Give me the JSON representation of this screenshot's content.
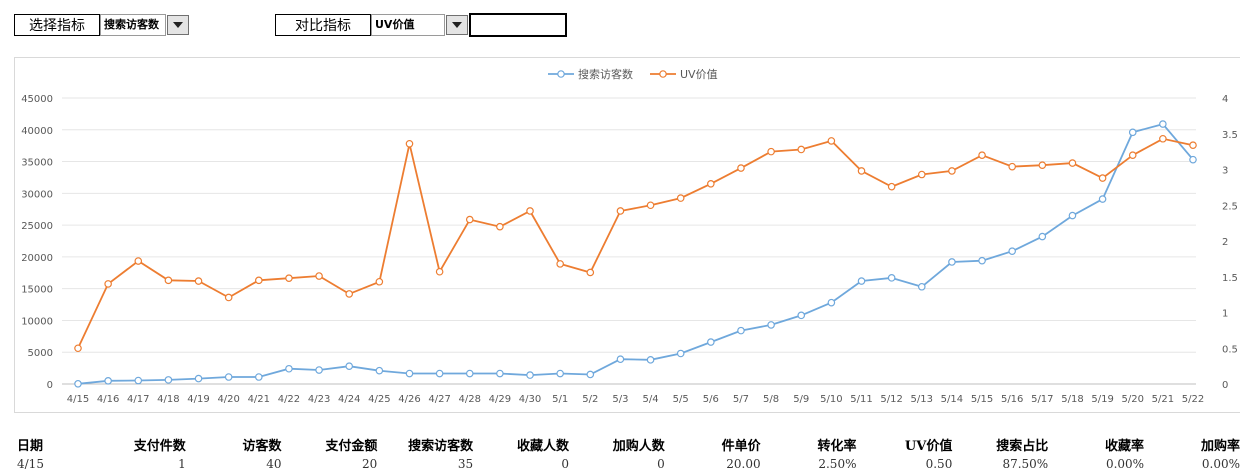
{
  "controls": {
    "select_label": "选择指标",
    "select_value": "搜索访客数",
    "compare_label": "对比指标",
    "compare_value": "UV价值"
  },
  "chart_data": {
    "type": "line",
    "x": [
      "4/15",
      "4/16",
      "4/17",
      "4/18",
      "4/19",
      "4/20",
      "4/21",
      "4/22",
      "4/23",
      "4/24",
      "4/25",
      "4/26",
      "4/27",
      "4/28",
      "4/29",
      "4/30",
      "5/1",
      "5/2",
      "5/3",
      "5/4",
      "5/5",
      "5/6",
      "5/7",
      "5/8",
      "5/9",
      "5/10",
      "5/11",
      "5/12",
      "5/13",
      "5/14",
      "5/15",
      "5/16",
      "5/17",
      "5/18",
      "5/19",
      "5/20",
      "5/21",
      "5/22"
    ],
    "series": [
      {
        "name": "搜索访客数",
        "axis": "left",
        "color": "#6fa8dc",
        "values": [
          35,
          500,
          550,
          650,
          850,
          1100,
          1100,
          2400,
          2200,
          2800,
          2100,
          1650,
          1650,
          1650,
          1650,
          1400,
          1650,
          1500,
          3900,
          3800,
          4800,
          6600,
          8400,
          9300,
          10800,
          12800,
          16200,
          16700,
          15300,
          19200,
          19400,
          20900,
          23200,
          26500,
          29100,
          39600,
          40900,
          35300
        ]
      },
      {
        "name": "UV价值",
        "axis": "right",
        "color": "#ed7d31",
        "values": [
          0.5,
          1.4,
          1.72,
          1.45,
          1.44,
          1.21,
          1.45,
          1.48,
          1.51,
          1.26,
          1.43,
          3.36,
          1.57,
          2.3,
          2.2,
          2.42,
          1.68,
          1.56,
          2.42,
          2.5,
          2.6,
          2.8,
          3.02,
          3.25,
          3.28,
          3.4,
          2.98,
          2.76,
          2.93,
          2.98,
          3.2,
          3.04,
          3.06,
          3.09,
          2.88,
          3.2,
          3.43,
          3.34
        ]
      }
    ],
    "y_left": {
      "min": 0,
      "max": 45000,
      "ticks": [
        "0",
        "5000",
        "10000",
        "15000",
        "20000",
        "25000",
        "30000",
        "35000",
        "40000",
        "45000"
      ]
    },
    "y_right": {
      "min": 0,
      "max": 4,
      "ticks": [
        "0",
        "0.5",
        "1",
        "1.5",
        "2",
        "2.5",
        "3",
        "3.5",
        "4"
      ]
    },
    "legend_placement": "top-center",
    "grid": true
  },
  "table": {
    "headers": [
      "日期",
      "支付件数",
      "访客数",
      "支付金额",
      "搜索访客数",
      "收藏人数",
      "加购人数",
      "件单价",
      "转化率",
      "UV价值",
      "搜索占比",
      "收藏率",
      "加购率"
    ],
    "rows": [
      [
        "4/15",
        "1",
        "40",
        "20",
        "35",
        "0",
        "0",
        "20.00",
        "2.50%",
        "0.50",
        "87.50%",
        "0.00%",
        "0.00%"
      ]
    ]
  }
}
